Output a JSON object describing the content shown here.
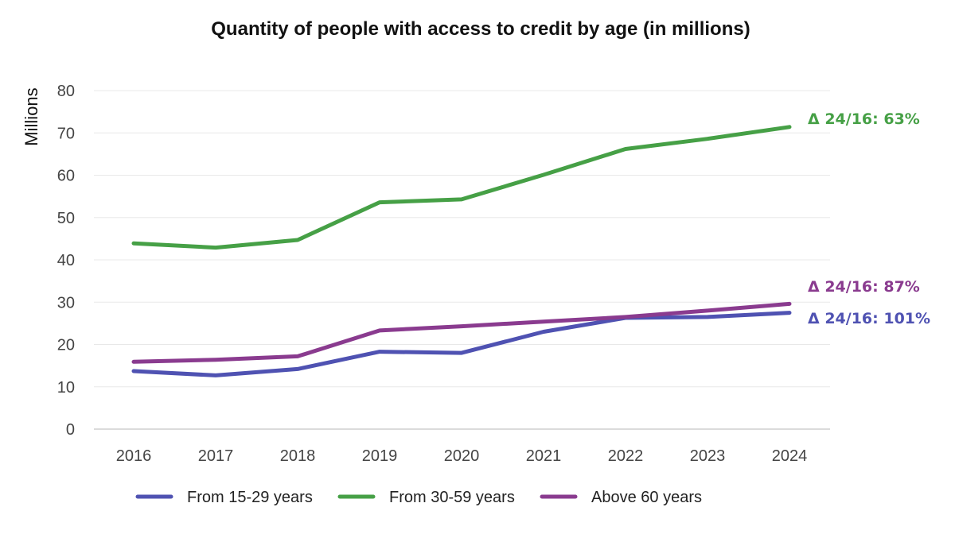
{
  "chart_data": {
    "type": "line",
    "title": "Quantity of people with access to credit by age (in millions)",
    "ylabel": "Millions",
    "xlabel": "",
    "ylim": [
      0,
      80
    ],
    "yticks": [
      0,
      10,
      20,
      30,
      40,
      50,
      60,
      70,
      80
    ],
    "grid": true,
    "legend_position": "bottom",
    "categories": [
      "2016",
      "2017",
      "2018",
      "2019",
      "2020",
      "2021",
      "2022",
      "2023",
      "2024"
    ],
    "series": [
      {
        "name": "From 15-29 years",
        "color": "#4f52b2",
        "values": [
          13.7,
          12.7,
          14.2,
          18.3,
          18.0,
          23.0,
          26.3,
          26.5,
          27.5
        ],
        "annotation": "Δ 24/16: 101%"
      },
      {
        "name": "From 30-59 years",
        "color": "#46a046",
        "values": [
          43.9,
          42.9,
          44.7,
          53.6,
          54.3,
          60.1,
          66.2,
          68.6,
          71.4
        ],
        "annotation": "Δ 24/16: 63%"
      },
      {
        "name": "Above 60 years",
        "color": "#8a3b8f",
        "values": [
          15.9,
          16.4,
          17.2,
          23.3,
          24.3,
          25.4,
          26.5,
          28.0,
          29.6
        ],
        "annotation": "Δ 24/16: 87%"
      }
    ]
  }
}
